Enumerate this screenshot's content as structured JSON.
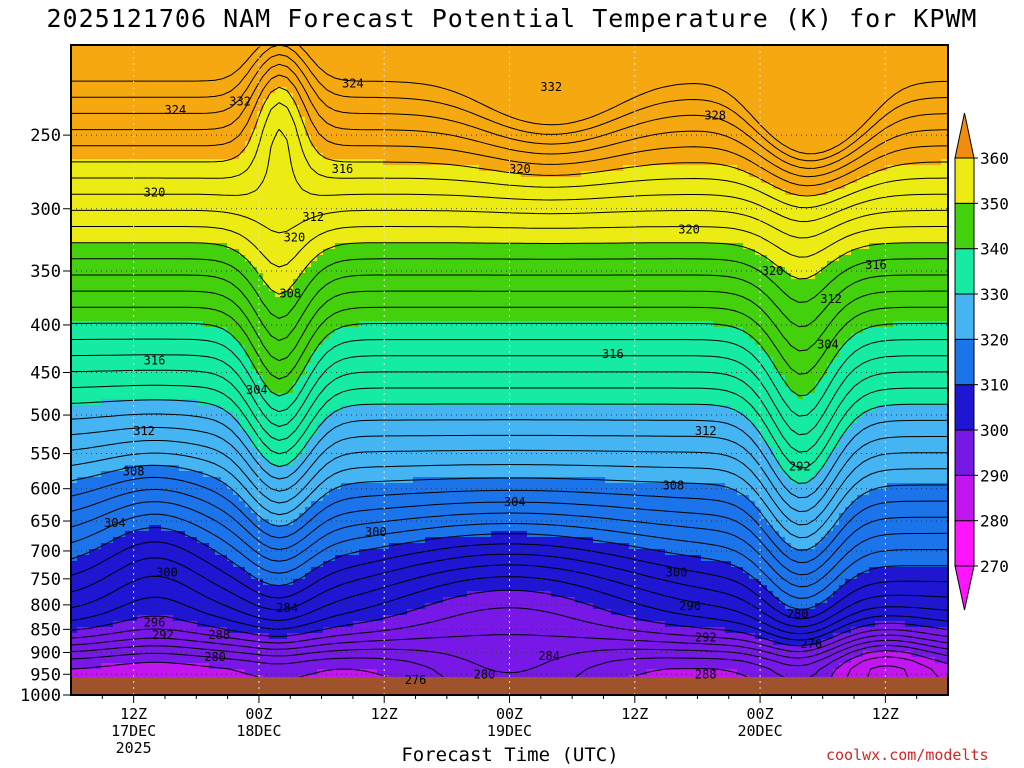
{
  "title": "2025121706 NAM Forecast Potential Temperature (K) for KPWM",
  "xlabel": "Forecast Time (UTC)",
  "credit": "coolwx.com/modelts",
  "chart_data": {
    "type": "contour",
    "title": "2025121706 NAM Forecast Potential Temperature (K) for KPWM",
    "xlabel": "Forecast Time (UTC)",
    "ylabel": "",
    "y_axis": {
      "ticks": [
        250,
        300,
        350,
        400,
        450,
        500,
        550,
        600,
        650,
        700,
        750,
        800,
        850,
        900,
        950,
        1000
      ],
      "range": [
        200,
        1000
      ],
      "scale": "log-pressure",
      "inverted": true
    },
    "x_axis": {
      "range": [
        6,
        90
      ],
      "ticks": [
        {
          "hour": 12,
          "lines": [
            "12Z",
            "17DEC",
            "2025"
          ]
        },
        {
          "hour": 24,
          "lines": [
            "00Z",
            "18DEC"
          ]
        },
        {
          "hour": 36,
          "lines": [
            "12Z"
          ]
        },
        {
          "hour": 48,
          "lines": [
            "00Z",
            "19DEC"
          ]
        },
        {
          "hour": 60,
          "lines": [
            "12Z"
          ]
        },
        {
          "hour": 72,
          "lines": [
            "00Z",
            "20DEC"
          ]
        },
        {
          "hour": 84,
          "lines": [
            "12Z"
          ]
        }
      ]
    },
    "grid": true,
    "colorbar": {
      "levels": [
        270,
        280,
        290,
        300,
        310,
        320,
        330,
        340,
        350,
        360
      ],
      "colors": [
        "#ff14ff",
        "#c215f0",
        "#7818e6",
        "#1e16d2",
        "#1c74ea",
        "#44b4f2",
        "#16eba4",
        "#42d10c",
        "#ecec14",
        "#f5a80f"
      ],
      "extend": "both",
      "under_color": "#ff14ff",
      "over_color": "#f08c10"
    },
    "contour_interval": 2,
    "contour_labels": [
      {
        "value": 324,
        "x_hour": 16.0,
        "p": 235
      },
      {
        "value": 332,
        "x_hour": 22.2,
        "p": 230
      },
      {
        "value": 324,
        "x_hour": 33.0,
        "p": 220
      },
      {
        "value": 332,
        "x_hour": 52.0,
        "p": 222
      },
      {
        "value": 328,
        "x_hour": 67.7,
        "p": 238
      },
      {
        "value": 316,
        "x_hour": 32.0,
        "p": 272
      },
      {
        "value": 320,
        "x_hour": 49.0,
        "p": 272
      },
      {
        "value": 320,
        "x_hour": 14.0,
        "p": 288
      },
      {
        "value": 312,
        "x_hour": 29.2,
        "p": 306
      },
      {
        "value": 320,
        "x_hour": 27.4,
        "p": 322
      },
      {
        "value": 320,
        "x_hour": 65.2,
        "p": 316
      },
      {
        "value": 320,
        "x_hour": 73.2,
        "p": 350
      },
      {
        "value": 316,
        "x_hour": 83.1,
        "p": 345
      },
      {
        "value": 312,
        "x_hour": 78.8,
        "p": 375
      },
      {
        "value": 308,
        "x_hour": 27.0,
        "p": 370
      },
      {
        "value": 304,
        "x_hour": 78.5,
        "p": 420
      },
      {
        "value": 316,
        "x_hour": 14.0,
        "p": 437
      },
      {
        "value": 316,
        "x_hour": 57.9,
        "p": 430
      },
      {
        "value": 304,
        "x_hour": 23.8,
        "p": 470
      },
      {
        "value": 312,
        "x_hour": 13.0,
        "p": 520
      },
      {
        "value": 312,
        "x_hour": 66.8,
        "p": 520
      },
      {
        "value": 292,
        "x_hour": 75.8,
        "p": 568
      },
      {
        "value": 308,
        "x_hour": 12.0,
        "p": 575
      },
      {
        "value": 308,
        "x_hour": 63.7,
        "p": 595
      },
      {
        "value": 304,
        "x_hour": 48.5,
        "p": 620
      },
      {
        "value": 304,
        "x_hour": 10.2,
        "p": 653
      },
      {
        "value": 300,
        "x_hour": 35.2,
        "p": 668
      },
      {
        "value": 300,
        "x_hour": 15.2,
        "p": 738
      },
      {
        "value": 300,
        "x_hour": 64.0,
        "p": 738
      },
      {
        "value": 296,
        "x_hour": 65.3,
        "p": 802
      },
      {
        "value": 284,
        "x_hour": 26.7,
        "p": 806
      },
      {
        "value": 280,
        "x_hour": 75.6,
        "p": 818
      },
      {
        "value": 296,
        "x_hour": 14.0,
        "p": 836
      },
      {
        "value": 292,
        "x_hour": 14.8,
        "p": 862
      },
      {
        "value": 288,
        "x_hour": 20.2,
        "p": 862
      },
      {
        "value": 292,
        "x_hour": 66.8,
        "p": 867
      },
      {
        "value": 276,
        "x_hour": 76.9,
        "p": 881
      },
      {
        "value": 280,
        "x_hour": 19.8,
        "p": 910
      },
      {
        "value": 284,
        "x_hour": 51.8,
        "p": 908
      },
      {
        "value": 288,
        "x_hour": 66.8,
        "p": 950
      },
      {
        "value": 280,
        "x_hour": 45.6,
        "p": 950
      },
      {
        "value": 276,
        "x_hour": 39.0,
        "p": 963
      }
    ]
  }
}
